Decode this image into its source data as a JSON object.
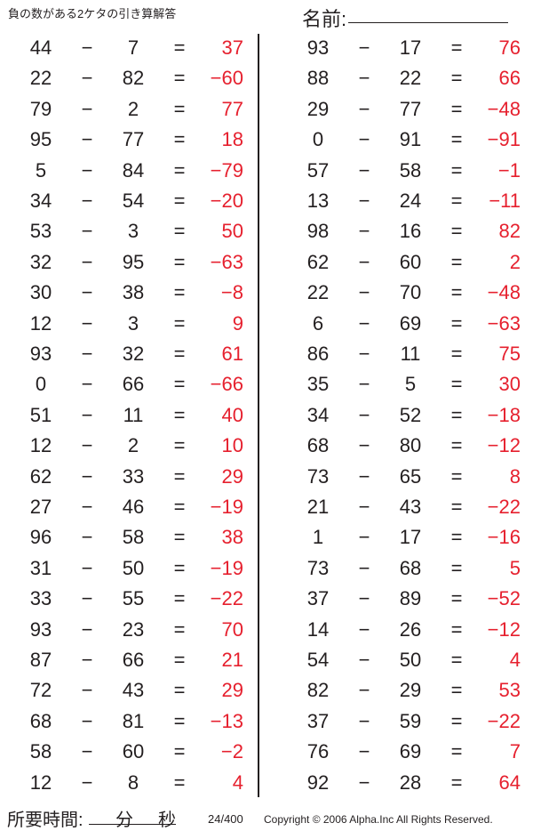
{
  "header": {
    "title": "負の数がある2ケタの引き算解答",
    "name_label": "名前:"
  },
  "footer": {
    "time_label": "所要時間:",
    "minutes_label": "分",
    "seconds_label": "秒",
    "page": "24/400",
    "copyright": "Copyright © 2006 Alpha.Inc All Rights Reserved."
  },
  "operator": "−",
  "equals": "=",
  "answer_color": "#e6202e",
  "left_problems": [
    [
      "44",
      "7",
      "37"
    ],
    [
      "22",
      "82",
      "−60"
    ],
    [
      "79",
      "2",
      "77"
    ],
    [
      "95",
      "77",
      "18"
    ],
    [
      "5",
      "84",
      "−79"
    ],
    [
      "34",
      "54",
      "−20"
    ],
    [
      "53",
      "3",
      "50"
    ],
    [
      "32",
      "95",
      "−63"
    ],
    [
      "30",
      "38",
      "−8"
    ],
    [
      "12",
      "3",
      "9"
    ],
    [
      "93",
      "32",
      "61"
    ],
    [
      "0",
      "66",
      "−66"
    ],
    [
      "51",
      "11",
      "40"
    ],
    [
      "12",
      "2",
      "10"
    ],
    [
      "62",
      "33",
      "29"
    ],
    [
      "27",
      "46",
      "−19"
    ],
    [
      "96",
      "58",
      "38"
    ],
    [
      "31",
      "50",
      "−19"
    ],
    [
      "33",
      "55",
      "−22"
    ],
    [
      "93",
      "23",
      "70"
    ],
    [
      "87",
      "66",
      "21"
    ],
    [
      "72",
      "43",
      "29"
    ],
    [
      "68",
      "81",
      "−13"
    ],
    [
      "58",
      "60",
      "−2"
    ],
    [
      "12",
      "8",
      "4"
    ]
  ],
  "right_problems": [
    [
      "93",
      "17",
      "76"
    ],
    [
      "88",
      "22",
      "66"
    ],
    [
      "29",
      "77",
      "−48"
    ],
    [
      "0",
      "91",
      "−91"
    ],
    [
      "57",
      "58",
      "−1"
    ],
    [
      "13",
      "24",
      "−11"
    ],
    [
      "98",
      "16",
      "82"
    ],
    [
      "62",
      "60",
      "2"
    ],
    [
      "22",
      "70",
      "−48"
    ],
    [
      "6",
      "69",
      "−63"
    ],
    [
      "86",
      "11",
      "75"
    ],
    [
      "35",
      "5",
      "30"
    ],
    [
      "34",
      "52",
      "−18"
    ],
    [
      "68",
      "80",
      "−12"
    ],
    [
      "73",
      "65",
      "8"
    ],
    [
      "21",
      "43",
      "−22"
    ],
    [
      "1",
      "17",
      "−16"
    ],
    [
      "73",
      "68",
      "5"
    ],
    [
      "37",
      "89",
      "−52"
    ],
    [
      "14",
      "26",
      "−12"
    ],
    [
      "54",
      "50",
      "4"
    ],
    [
      "82",
      "29",
      "53"
    ],
    [
      "37",
      "59",
      "−22"
    ],
    [
      "76",
      "69",
      "7"
    ],
    [
      "92",
      "28",
      "64"
    ]
  ]
}
